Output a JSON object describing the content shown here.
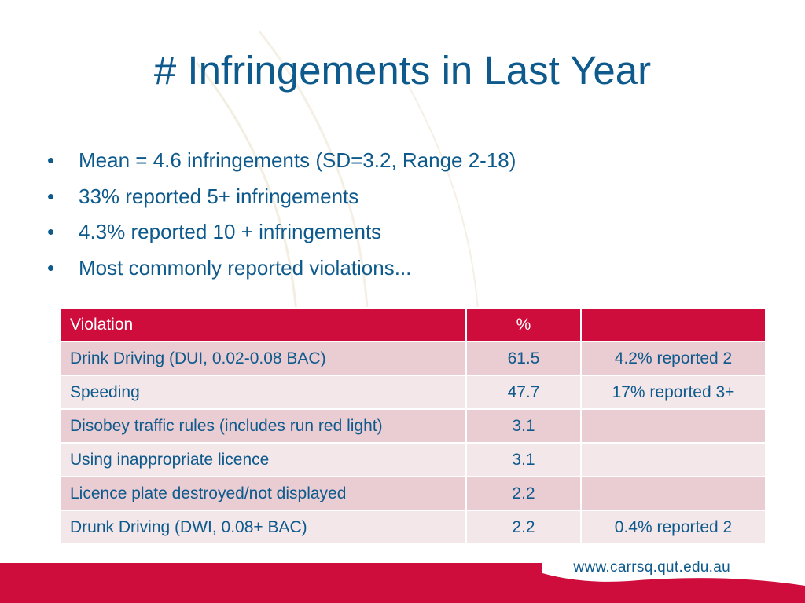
{
  "slide": {
    "title": "# Infringements in Last Year",
    "bullets": [
      "Mean = 4.6 infringements (SD=3.2, Range 2-18)",
      "33% reported 5+ infringements",
      "4.3% reported 10 + infringements",
      "Most commonly reported violations..."
    ],
    "bullet_symbol": "•"
  },
  "table": {
    "headers": [
      "Violation",
      "%",
      ""
    ],
    "rows": [
      [
        "Drink Driving (DUI, 0.02-0.08 BAC)",
        "61.5",
        "4.2% reported 2"
      ],
      [
        "Speeding",
        "47.7",
        "17% reported 3+"
      ],
      [
        "Disobey traffic rules (includes run red light)",
        "3.1",
        ""
      ],
      [
        "Using inappropriate licence",
        "3.1",
        ""
      ],
      [
        "Licence plate destroyed/not displayed",
        "2.2",
        ""
      ],
      [
        "Drunk Driving (DWI, 0.08+ BAC)",
        "2.2",
        "0.4% reported 2"
      ]
    ]
  },
  "footer": {
    "url": "www.carrsq.qut.edu.au"
  },
  "colors": {
    "title_blue": "#0e5a8c",
    "accent_red": "#cf0d3c",
    "row_odd": "#e9cdd3",
    "row_even": "#f3e7ea"
  }
}
